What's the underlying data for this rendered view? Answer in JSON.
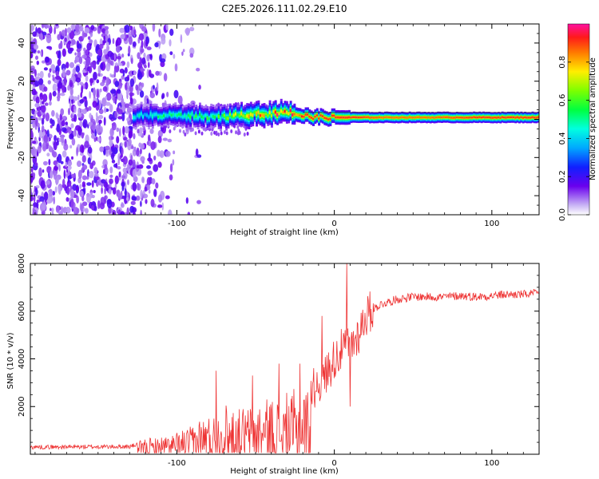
{
  "figure_title": "C2E5.2026.111.02.29.E10",
  "chart_data": [
    {
      "type": "heatmap",
      "title": "C2E5.2026.111.02.29.E10",
      "xlabel": "Height of straight line (km)",
      "ylabel": "Frequency (Hz)",
      "xlim": [
        -193,
        130
      ],
      "ylim": [
        -50,
        50
      ],
      "x_ticks": [
        -100,
        0,
        100
      ],
      "x_tick_labels": [
        "-100",
        "0",
        "100"
      ],
      "y_ticks": [
        -40,
        -20,
        0,
        20,
        40
      ],
      "y_tick_labels": [
        "-40",
        "-20",
        "0",
        "20",
        "40"
      ],
      "colorbar": {
        "label": "Normalized spectral amplitude",
        "range": [
          0,
          1
        ],
        "ticks": [
          0.0,
          0.2,
          0.4,
          0.6,
          0.8
        ],
        "tick_labels": [
          "0.0",
          "0.2",
          "0.4",
          "0.6",
          "0.8"
        ],
        "colormap": "hsv-like (white, violet, blue, cyan, green, yellow, orange, red, pink)"
      },
      "ridge": {
        "x": [
          -128,
          -110,
          -90,
          -75,
          -60,
          -50,
          -40,
          -30,
          -22,
          -10,
          0,
          15,
          30,
          60,
          90,
          130
        ],
        "freq_hz": [
          2,
          2,
          2,
          1,
          2,
          3,
          3,
          4,
          2,
          1,
          1,
          1,
          1,
          1,
          1,
          1
        ],
        "peak_amplitude": [
          0.45,
          0.5,
          0.55,
          0.6,
          0.7,
          0.8,
          0.9,
          0.95,
          0.9,
          0.9,
          0.9,
          0.9,
          0.85,
          0.85,
          0.9,
          0.9
        ]
      },
      "noise_region_x": [
        -193,
        -105
      ]
    },
    {
      "type": "line",
      "title": "",
      "xlabel": "Height of straight line (km)",
      "ylabel": "SNR (10 * v/v)",
      "xlim": [
        -193,
        130
      ],
      "ylim": [
        0,
        8000
      ],
      "x_ticks": [
        -100,
        0,
        100
      ],
      "x_tick_labels": [
        "-100",
        "0",
        "100"
      ],
      "y_ticks": [
        2000,
        4000,
        6000,
        8000
      ],
      "y_tick_labels": [
        "2000",
        "4000",
        "6000",
        "8000"
      ],
      "color": "#ee3333",
      "series": [
        {
          "name": "SNR",
          "envelope_x": [
            -193,
            -130,
            -120,
            -100,
            -90,
            -80,
            -70,
            -60,
            -50,
            -40,
            -30,
            -20,
            -10,
            -5,
            0,
            5,
            10,
            15,
            20,
            25,
            30,
            40,
            50,
            60,
            70,
            80,
            90,
            100,
            110,
            120,
            130
          ],
          "envelope_y": [
            300,
            320,
            500,
            700,
            1000,
            1400,
            1700,
            1500,
            1700,
            1900,
            2000,
            2200,
            3000,
            3400,
            4000,
            4400,
            4500,
            5000,
            5800,
            6100,
            6300,
            6500,
            6600,
            6600,
            6600,
            6650,
            6600,
            6650,
            6700,
            6700,
            6750
          ],
          "spike_x": [
            -75,
            -52,
            -35,
            -22,
            -8,
            8,
            10
          ],
          "spike_y": [
            3500,
            3300,
            3800,
            3800,
            5800,
            8000,
            2000
          ]
        }
      ]
    }
  ]
}
